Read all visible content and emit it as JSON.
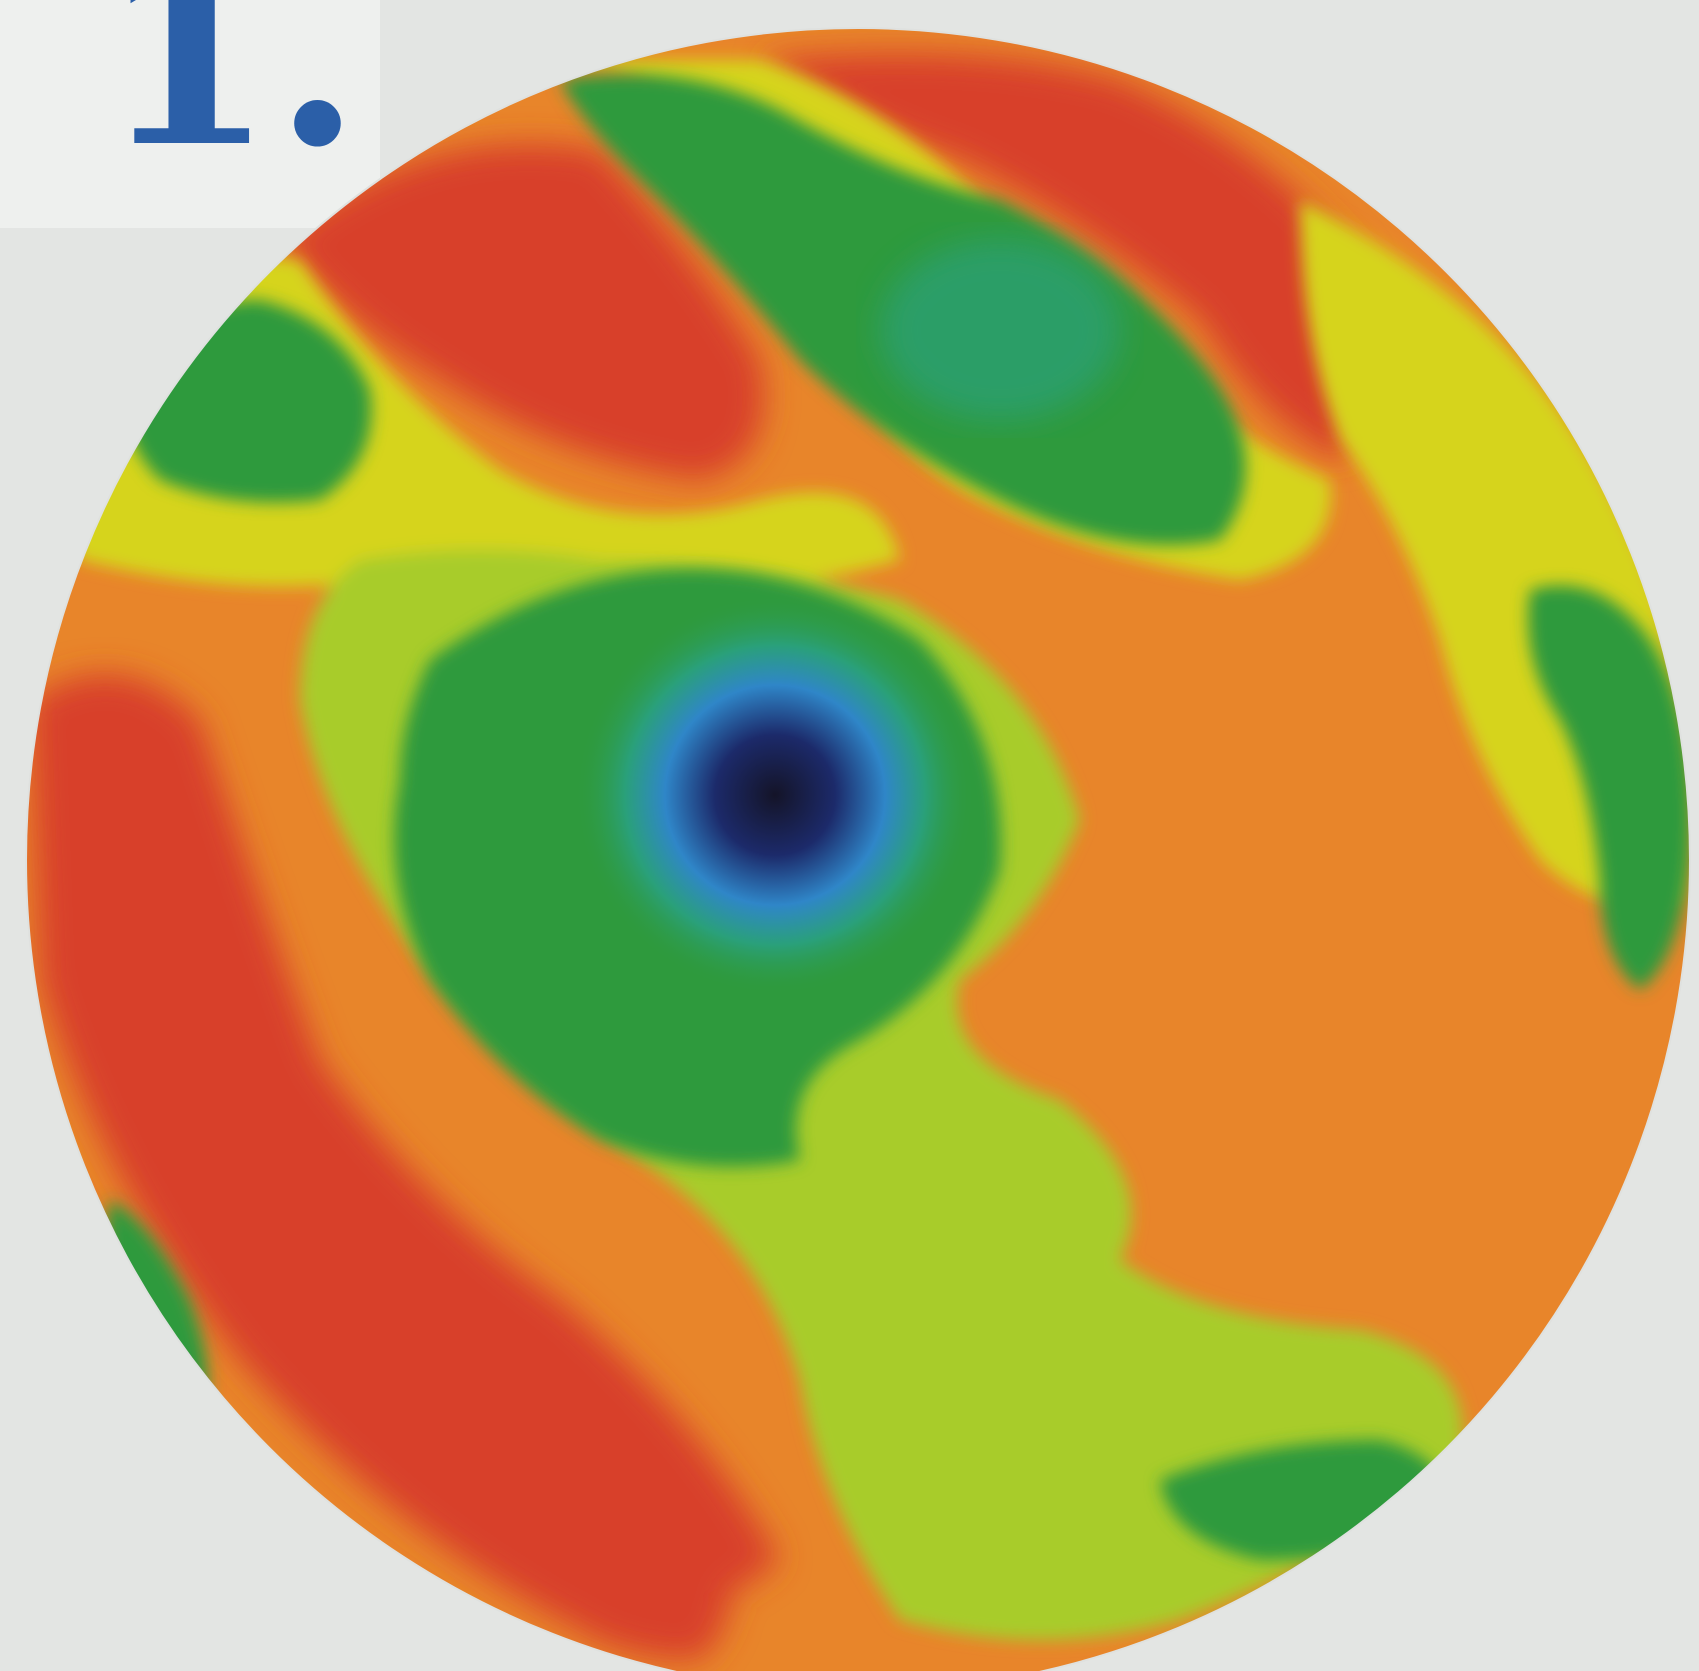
{
  "figure": {
    "panel_label": "1."
  },
  "colors": {
    "background": "#e3e5e3",
    "label_card": "#eef0ee",
    "label_text": "#2b5fa8",
    "red": "#d8402c",
    "orange": "#e8852a",
    "yellow": "#d6d41e",
    "yellow_green": "#a8cc2a",
    "green": "#2f9a3c",
    "teal": "#2aa07a",
    "blue": "#2f86c8",
    "navy": "#1c2a6a",
    "dark": "#141428"
  }
}
